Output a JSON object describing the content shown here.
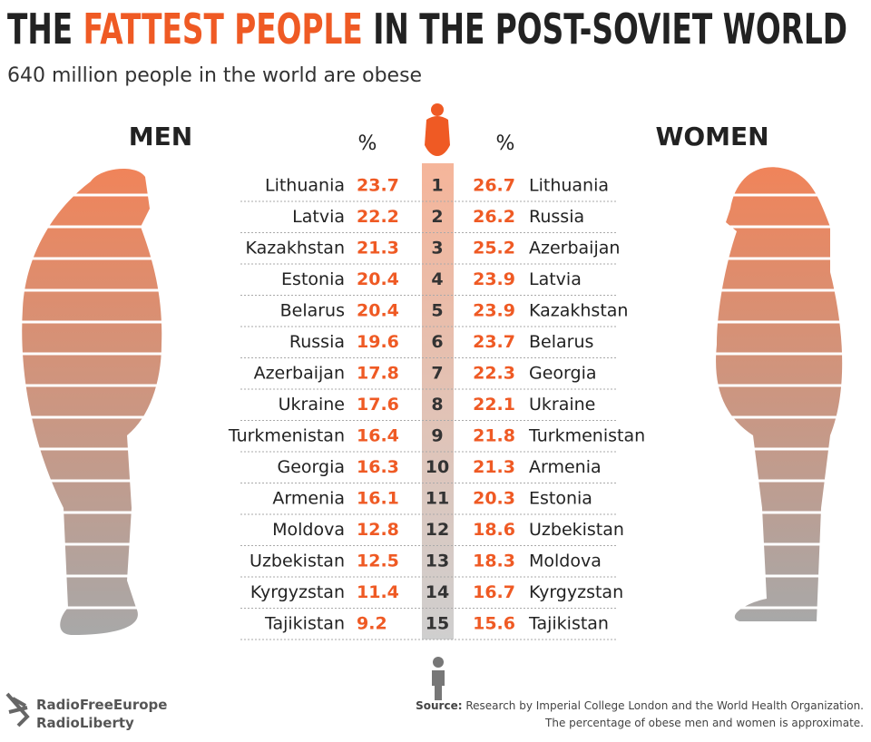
{
  "header": {
    "title_start": "THE",
    "title_highlight": "FATTEST PEOPLE",
    "title_end": "IN THE POST-SOVIET WORLD",
    "subtitle": "640 million people in the world are obese"
  },
  "table": {
    "men_label": "MEN",
    "women_label": "WOMEN",
    "men_unit": "%",
    "women_unit": "%",
    "rows": [
      {
        "rank": 1,
        "men_country": "Lithuania",
        "men_value": 23.7,
        "women_value": 26.7,
        "women_country": "Lithuania"
      },
      {
        "rank": 2,
        "men_country": "Latvia",
        "men_value": 22.2,
        "women_value": 26.2,
        "women_country": "Russia"
      },
      {
        "rank": 3,
        "men_country": "Kazakhstan",
        "men_value": 21.3,
        "women_value": 25.2,
        "women_country": "Azerbaijan"
      },
      {
        "rank": 4,
        "men_country": "Estonia",
        "men_value": 20.4,
        "women_value": 23.9,
        "women_country": "Latvia"
      },
      {
        "rank": 5,
        "men_country": "Belarus",
        "men_value": 20.4,
        "women_value": 23.9,
        "women_country": "Kazakhstan"
      },
      {
        "rank": 6,
        "men_country": "Russia",
        "men_value": 19.6,
        "women_value": 23.7,
        "women_country": "Belarus"
      },
      {
        "rank": 7,
        "men_country": "Azerbaijan",
        "men_value": 17.8,
        "women_value": 22.3,
        "women_country": "Georgia"
      },
      {
        "rank": 8,
        "men_country": "Ukraine",
        "men_value": 17.6,
        "women_value": 22.1,
        "women_country": "Ukraine"
      },
      {
        "rank": 9,
        "men_country": "Turkmenistan",
        "men_value": 16.4,
        "women_value": 21.8,
        "women_country": "Turkmenistan"
      },
      {
        "rank": 10,
        "men_country": "Georgia",
        "men_value": 16.3,
        "women_value": 21.3,
        "women_country": "Armenia"
      },
      {
        "rank": 11,
        "men_country": "Armenia",
        "men_value": 16.1,
        "women_value": 20.3,
        "women_country": "Estonia"
      },
      {
        "rank": 12,
        "men_country": "Moldova",
        "men_value": 12.8,
        "women_value": 18.6,
        "women_country": "Uzbekistan"
      },
      {
        "rank": 13,
        "men_country": "Uzbekistan",
        "men_value": 12.5,
        "women_value": 18.3,
        "women_country": "Moldova"
      },
      {
        "rank": 14,
        "men_country": "Kyrgyzstan",
        "men_value": 11.4,
        "women_value": 16.7,
        "women_country": "Kyrgyzstan"
      },
      {
        "rank": 15,
        "men_country": "Tajikistan",
        "men_value": 9.2,
        "women_value": 15.6,
        "women_country": "Tajikistan"
      }
    ]
  },
  "footer": {
    "logo_line1": "RadioFreeEurope",
    "logo_line2": "RadioLiberty",
    "source_label": "Source:",
    "source_text": "Research by Imperial College London and the World Health Organization.",
    "note": "The percentage of obese men and women is approximate."
  }
}
